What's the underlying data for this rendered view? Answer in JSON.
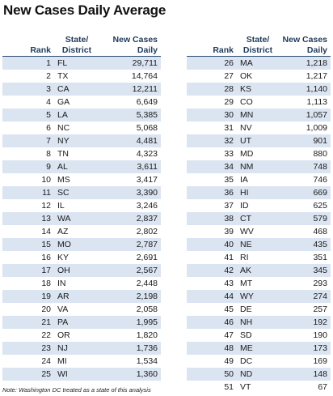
{
  "title": "New Cases Daily Average",
  "headers": {
    "rank": "Rank",
    "state_line1": "State/",
    "state_line2": "District",
    "cases_line1": "New Cases",
    "cases_line2": "Daily"
  },
  "note": "Note: Washington DC treated as a state of this analysis",
  "left_rows": [
    {
      "rank": "1",
      "state": "FL",
      "cases": "29,711"
    },
    {
      "rank": "2",
      "state": "TX",
      "cases": "14,764"
    },
    {
      "rank": "3",
      "state": "CA",
      "cases": "12,211"
    },
    {
      "rank": "4",
      "state": "GA",
      "cases": "6,649"
    },
    {
      "rank": "5",
      "state": "LA",
      "cases": "5,385"
    },
    {
      "rank": "6",
      "state": "NC",
      "cases": "5,068"
    },
    {
      "rank": "7",
      "state": "NY",
      "cases": "4,481"
    },
    {
      "rank": "8",
      "state": "TN",
      "cases": "4,323"
    },
    {
      "rank": "9",
      "state": "AL",
      "cases": "3,611"
    },
    {
      "rank": "10",
      "state": "MS",
      "cases": "3,417"
    },
    {
      "rank": "11",
      "state": "SC",
      "cases": "3,390"
    },
    {
      "rank": "12",
      "state": "IL",
      "cases": "3,246"
    },
    {
      "rank": "13",
      "state": "WA",
      "cases": "2,837"
    },
    {
      "rank": "14",
      "state": "AZ",
      "cases": "2,802"
    },
    {
      "rank": "15",
      "state": "MO",
      "cases": "2,787"
    },
    {
      "rank": "16",
      "state": "KY",
      "cases": "2,691"
    },
    {
      "rank": "17",
      "state": "OH",
      "cases": "2,567"
    },
    {
      "rank": "18",
      "state": "IN",
      "cases": "2,448"
    },
    {
      "rank": "19",
      "state": "AR",
      "cases": "2,198"
    },
    {
      "rank": "20",
      "state": "VA",
      "cases": "2,058"
    },
    {
      "rank": "21",
      "state": "PA",
      "cases": "1,995"
    },
    {
      "rank": "22",
      "state": "OR",
      "cases": "1,820"
    },
    {
      "rank": "23",
      "state": "NJ",
      "cases": "1,736"
    },
    {
      "rank": "24",
      "state": "MI",
      "cases": "1,534"
    },
    {
      "rank": "25",
      "state": "WI",
      "cases": "1,360"
    }
  ],
  "right_rows": [
    {
      "rank": "26",
      "state": "MA",
      "cases": "1,218"
    },
    {
      "rank": "27",
      "state": "OK",
      "cases": "1,217"
    },
    {
      "rank": "28",
      "state": "KS",
      "cases": "1,140"
    },
    {
      "rank": "29",
      "state": "CO",
      "cases": "1,113"
    },
    {
      "rank": "30",
      "state": "MN",
      "cases": "1,057"
    },
    {
      "rank": "31",
      "state": "NV",
      "cases": "1,009"
    },
    {
      "rank": "32",
      "state": "UT",
      "cases": "901"
    },
    {
      "rank": "33",
      "state": "MD",
      "cases": "880"
    },
    {
      "rank": "34",
      "state": "NM",
      "cases": "748"
    },
    {
      "rank": "35",
      "state": "IA",
      "cases": "746"
    },
    {
      "rank": "36",
      "state": "HI",
      "cases": "669"
    },
    {
      "rank": "37",
      "state": "ID",
      "cases": "625"
    },
    {
      "rank": "38",
      "state": "CT",
      "cases": "579"
    },
    {
      "rank": "39",
      "state": "WV",
      "cases": "468"
    },
    {
      "rank": "40",
      "state": "NE",
      "cases": "435"
    },
    {
      "rank": "41",
      "state": "RI",
      "cases": "351"
    },
    {
      "rank": "42",
      "state": "AK",
      "cases": "345"
    },
    {
      "rank": "43",
      "state": "MT",
      "cases": "293"
    },
    {
      "rank": "44",
      "state": "WY",
      "cases": "274"
    },
    {
      "rank": "45",
      "state": "DE",
      "cases": "257"
    },
    {
      "rank": "46",
      "state": "NH",
      "cases": "192"
    },
    {
      "rank": "47",
      "state": "SD",
      "cases": "190"
    },
    {
      "rank": "48",
      "state": "ME",
      "cases": "173"
    },
    {
      "rank": "49",
      "state": "DC",
      "cases": "169"
    },
    {
      "rank": "50",
      "state": "ND",
      "cases": "148"
    },
    {
      "rank": "51",
      "state": "VT",
      "cases": "67"
    }
  ]
}
